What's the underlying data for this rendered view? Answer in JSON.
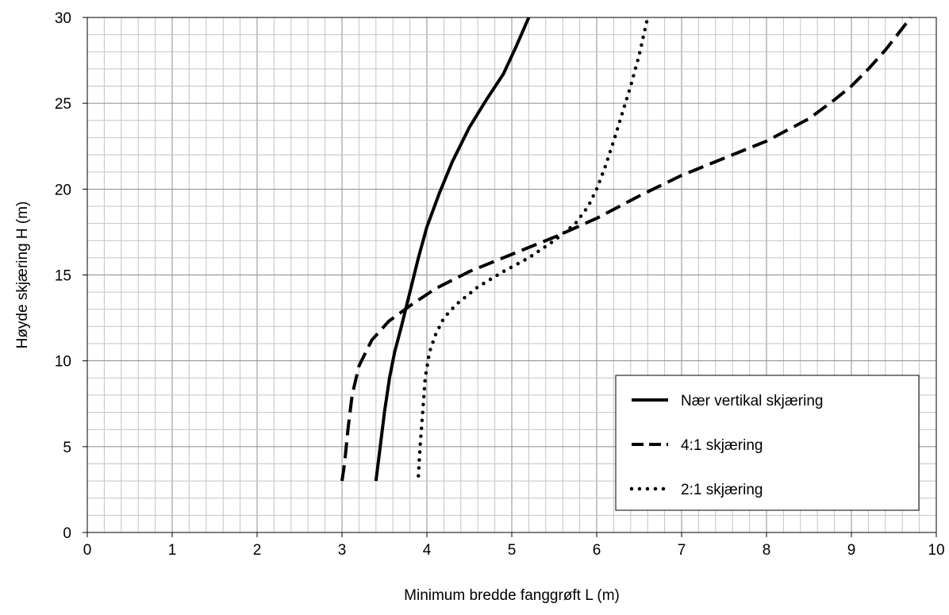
{
  "chart_data": {
    "type": "line",
    "xlabel": "Minimum bredde fanggrøft L (m)",
    "ylabel": "Høyde skjæring H (m)",
    "xlim": [
      0,
      10
    ],
    "ylim": [
      0,
      30
    ],
    "x_ticks": [
      "0",
      "1",
      "2",
      "3",
      "4",
      "5",
      "6",
      "7",
      "8",
      "9",
      "10"
    ],
    "y_ticks": [
      "0",
      "5",
      "10",
      "15",
      "20",
      "25",
      "30"
    ],
    "grid": "major and minor",
    "legend_position": "bottom-right",
    "series": [
      {
        "name": "Nær vertikal skjæring",
        "style": "solid",
        "color": "#000000",
        "x": [
          3.4,
          3.45,
          3.5,
          3.56,
          3.62,
          3.7,
          3.8,
          3.9,
          4.0,
          4.15,
          4.3,
          4.5,
          4.7,
          4.9,
          5.05,
          5.2
        ],
        "y": [
          3,
          5,
          7,
          9,
          10.5,
          12,
          14,
          16,
          17.8,
          19.8,
          21.6,
          23.6,
          25.2,
          26.7,
          28.3,
          30
        ]
      },
      {
        "name": "4:1 skjæring",
        "style": "dashed",
        "color": "#000000",
        "x": [
          3.0,
          3.03,
          3.07,
          3.12,
          3.2,
          3.35,
          3.55,
          3.8,
          4.1,
          4.5,
          5.0,
          5.5,
          6.0,
          6.5,
          7.0,
          7.5,
          8.0,
          8.5,
          8.8,
          9.0,
          9.2,
          9.4,
          9.7
        ],
        "y": [
          3,
          4,
          6,
          8,
          9.7,
          11.2,
          12.3,
          13.2,
          14.2,
          15.2,
          16.2,
          17.2,
          18.3,
          19.6,
          20.8,
          21.8,
          22.8,
          24.1,
          25.2,
          26.0,
          27.0,
          28.1,
          30
        ]
      },
      {
        "name": "2:1 skjæring",
        "style": "dotted",
        "color": "#000000",
        "x": [
          3.9,
          3.92,
          3.95,
          3.98,
          4.03,
          4.1,
          4.2,
          4.35,
          4.6,
          4.9,
          5.2,
          5.5,
          5.75,
          5.9,
          6.0,
          6.1,
          6.2,
          6.3,
          6.4,
          6.5,
          6.6
        ],
        "y": [
          3.3,
          5,
          7,
          9,
          10.5,
          11.5,
          12.5,
          13.3,
          14.3,
          15.2,
          16.0,
          17.0,
          18.0,
          19.0,
          20.0,
          21.3,
          22.8,
          24.4,
          26.0,
          27.8,
          30
        ]
      }
    ]
  }
}
